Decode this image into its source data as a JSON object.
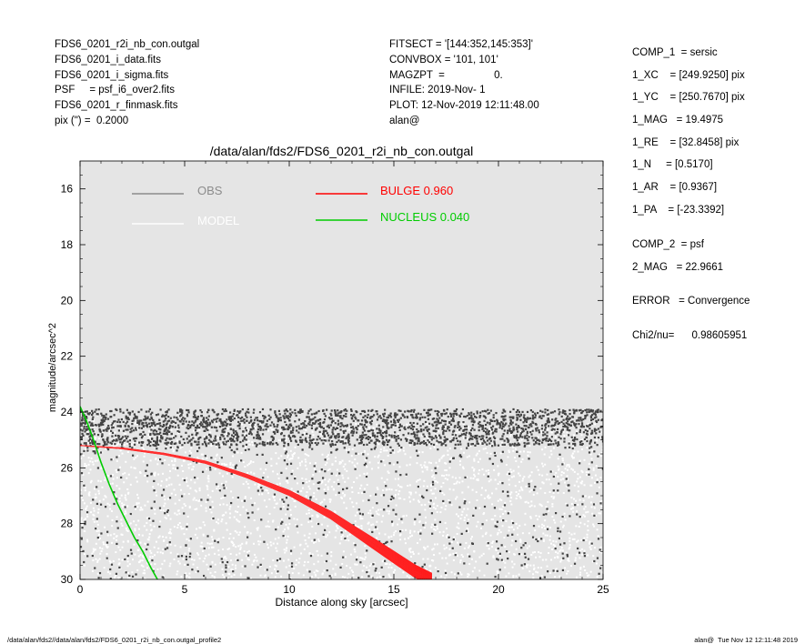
{
  "header_left": [
    "FDS6_0201_r2i_nb_con.outgal",
    "FDS6_0201_i_data.fits",
    "FDS6_0201_i_sigma.fits",
    "PSF     = psf_i6_over2.fits",
    "FDS6_0201_r_finmask.fits",
    "pix (\") =  0.2000"
  ],
  "header_mid": [
    "FITSECT = '[144:352,145:353]'",
    "CONVBOX = '101, 101'",
    "MAGZPT  =                 0.",
    "INFILE: 2019-Nov- 1",
    "PLOT: 12-Nov-2019 12:11:48.00",
    "alan@"
  ],
  "params": [
    "COMP_1  = sersic",
    "1_XC    = [249.9250] pix",
    "1_YC    = [250.7670] pix",
    "1_MAG   = 19.4975",
    "1_RE    = [32.8458] pix",
    "1_N     = [0.5170]",
    "1_AR    = [0.9367]",
    "1_PA    = [-23.3392]",
    "COMP_2  = psf",
    "2_MAG   = 22.9661",
    "ERROR   = Convergence",
    "Chi2/nu=      0.98605951"
  ],
  "footer_left": "/data/alan/fds2//data/alan/fds2/FDS6_0201_r2i_nb_con.outgal_profile2",
  "footer_right": "alan@  Tue Nov 12 12:11:48 2019",
  "chart_data": {
    "type": "scatter",
    "title": "/data/alan/fds2/FDS6_0201_r2i_nb_con.outgal",
    "xlabel": "Distance along sky [arcsec]",
    "ylabel": "magnitude/arcsec^2",
    "xlim": [
      0,
      25
    ],
    "ylim": [
      30,
      15
    ],
    "y_inverted": true,
    "xticks": [
      0,
      5,
      10,
      15,
      20,
      25
    ],
    "yticks": [
      16,
      18,
      20,
      22,
      24,
      26,
      28,
      30
    ],
    "background": "#e5e5e5",
    "legend": [
      {
        "label": "OBS",
        "color": "#8c8c8c"
      },
      {
        "label": "MODEL",
        "color": "#ffffff"
      },
      {
        "label": "BULGE  0.960",
        "color": "#ff0000"
      },
      {
        "label": "NUCLEUS  0.040",
        "color": "#00cc00"
      }
    ],
    "series": [
      {
        "name": "BULGE  0.960",
        "color": "#ff0000",
        "x": [
          0,
          2,
          4,
          6,
          8,
          10,
          11,
          12,
          13,
          14,
          15,
          16,
          16.8
        ],
        "y": [
          25.2,
          25.3,
          25.5,
          25.8,
          26.3,
          26.9,
          27.3,
          27.7,
          28.2,
          28.7,
          29.2,
          29.7,
          30.0
        ],
        "band_width": [
          0,
          0.03,
          0.05,
          0.08,
          0.12,
          0.18,
          0.22,
          0.27,
          0.32,
          0.38,
          0.42,
          0.45,
          0.45
        ]
      },
      {
        "name": "NUCLEUS  0.040",
        "color": "#00cc00",
        "x": [
          0,
          0.3,
          0.6,
          1.0,
          1.4,
          1.8,
          2.2,
          2.6,
          3.0,
          3.4,
          3.7
        ],
        "y": [
          23.8,
          24.3,
          24.9,
          25.8,
          26.6,
          27.3,
          27.9,
          28.5,
          29.0,
          29.6,
          30.0
        ]
      },
      {
        "name": "OBS",
        "color": "#333333",
        "style": "points",
        "description_range": {
          "x": [
            0,
            25
          ],
          "y_band_dense": [
            23.8,
            25.2
          ],
          "y_scatter": [
            25.2,
            30
          ]
        }
      },
      {
        "name": "MODEL",
        "color": "#ffffff",
        "style": "points",
        "description_range": {
          "x": [
            0,
            25
          ],
          "y": [
            24.3,
            30
          ]
        }
      }
    ]
  }
}
